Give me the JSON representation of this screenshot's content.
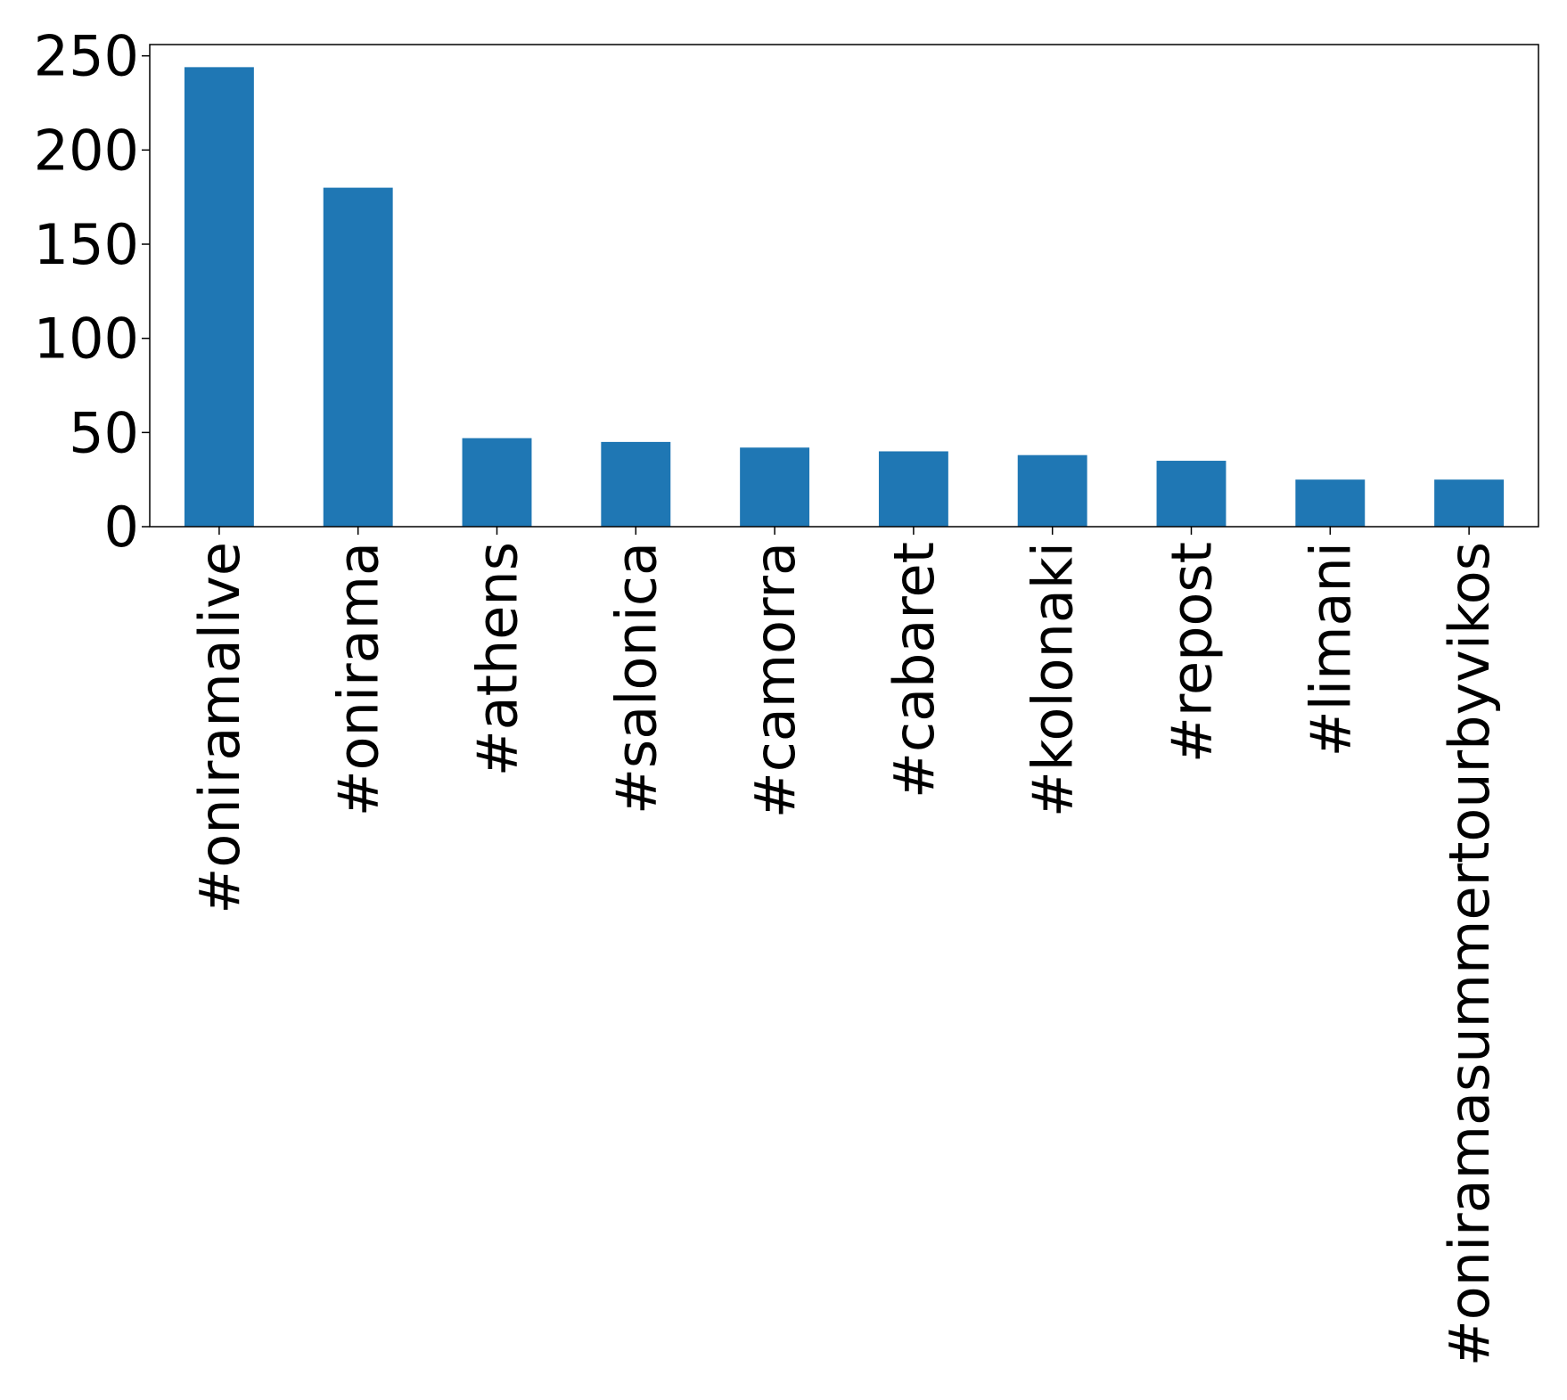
{
  "chart_data": {
    "type": "bar",
    "categories": [
      "#oniramalive",
      "#onirama",
      "#athens",
      "#salonica",
      "#camorra",
      "#cabaret",
      "#kolonaki",
      "#repost",
      "#limani",
      "#oniramasummertourbyvikos"
    ],
    "values": [
      244,
      180,
      47,
      45,
      42,
      40,
      38,
      35,
      25,
      25
    ],
    "yticks": [
      0,
      50,
      100,
      150,
      200,
      250
    ],
    "ylim": [
      0,
      256
    ],
    "grid": false,
    "bar_color": "#1f77b4",
    "title": "",
    "xlabel": "",
    "ylabel": ""
  }
}
